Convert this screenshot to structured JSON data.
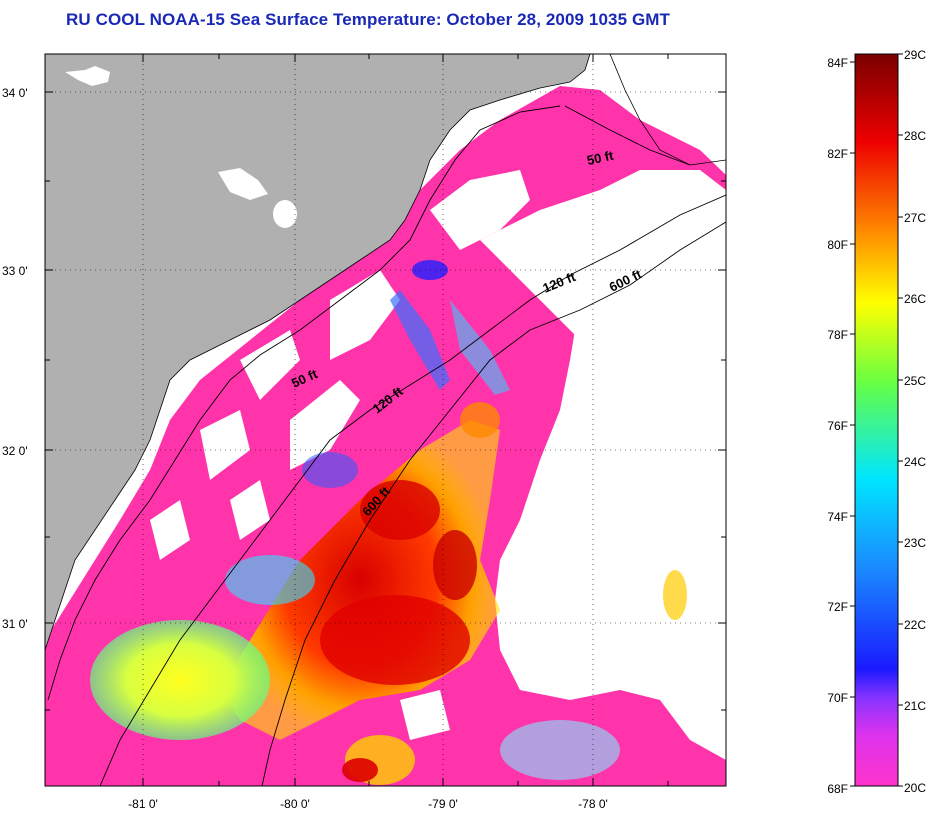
{
  "title": "RU COOL  NOAA-15  Sea Surface Temperature:  October 28, 2009 1035 GMT",
  "lat_labels": [
    "34 0'",
    "33 0'",
    "32 0'",
    "31 0'"
  ],
  "lon_labels": [
    "-81 0'",
    "-80 0'",
    "-79 0'",
    "-78 0'"
  ],
  "isobath_labels": [
    {
      "text": "50 ft"
    },
    {
      "text": "120 ft"
    },
    {
      "text": "600 ft"
    },
    {
      "text": "50 ft"
    },
    {
      "text": "120 ft"
    },
    {
      "text": "600 ft"
    }
  ],
  "colorbar": {
    "fahrenheit": [
      "84F",
      "82F",
      "80F",
      "78F",
      "76F",
      "74F",
      "72F",
      "70F",
      "68F"
    ],
    "celsius": [
      "29C",
      "28C",
      "27C",
      "26C",
      "25C",
      "24C",
      "23C",
      "22C",
      "21C",
      "20C"
    ],
    "colors": {
      "min": "#ff33cc",
      "purple": "#8833ff",
      "blue": "#1a1aff",
      "cyan": "#00e5ff",
      "green": "#66ff44",
      "yellow": "#ffff00",
      "orange": "#ff8800",
      "red": "#ee0000",
      "max": "#7a0000"
    }
  },
  "colors": {
    "land": "#b0b0b0",
    "cloud": "#ffffff",
    "title": "#1a28b8"
  }
}
